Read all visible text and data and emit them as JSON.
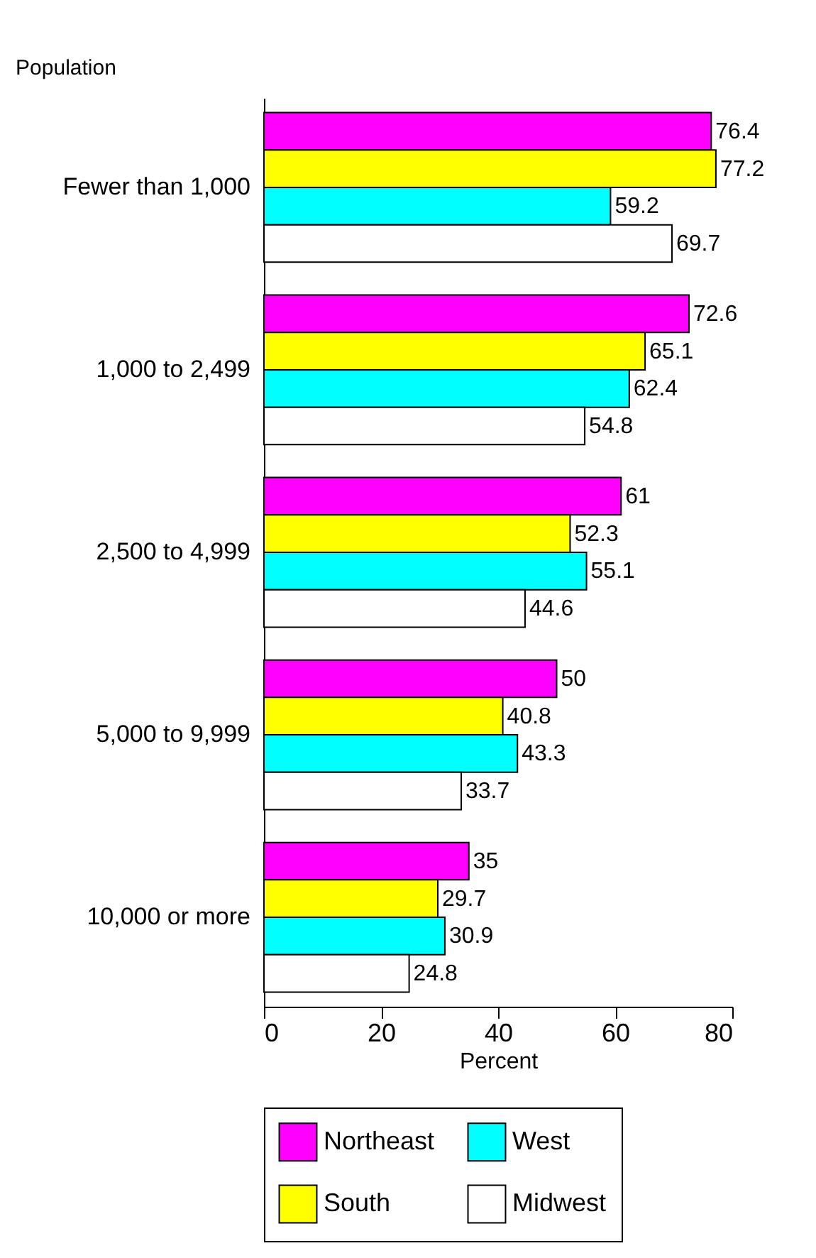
{
  "chart_data": {
    "type": "bar",
    "orientation": "horizontal",
    "ylabel": "Population",
    "xlabel": "Percent",
    "categories": [
      "Fewer than 1,000",
      "1,000 to 2,499",
      "2,500 to 4,999",
      "5,000 to 9,999",
      "10,000 or more"
    ],
    "series": [
      {
        "name": "Northeast",
        "color": "#ff00ff",
        "values": [
          76.4,
          72.6,
          61,
          50,
          35
        ]
      },
      {
        "name": "South",
        "color": "#ffff00",
        "values": [
          77.2,
          65.1,
          52.3,
          40.8,
          29.7
        ]
      },
      {
        "name": "West",
        "color": "#00ffff",
        "values": [
          59.2,
          62.4,
          55.1,
          43.3,
          30.9
        ]
      },
      {
        "name": "Midwest",
        "color": "#ffffff",
        "values": [
          69.7,
          54.8,
          44.6,
          33.7,
          24.8
        ]
      }
    ],
    "xlim": [
      0,
      80
    ],
    "xticks": [
      0,
      20,
      40,
      60,
      80
    ],
    "grid": false,
    "legend": "bottom",
    "data_labels": true
  }
}
